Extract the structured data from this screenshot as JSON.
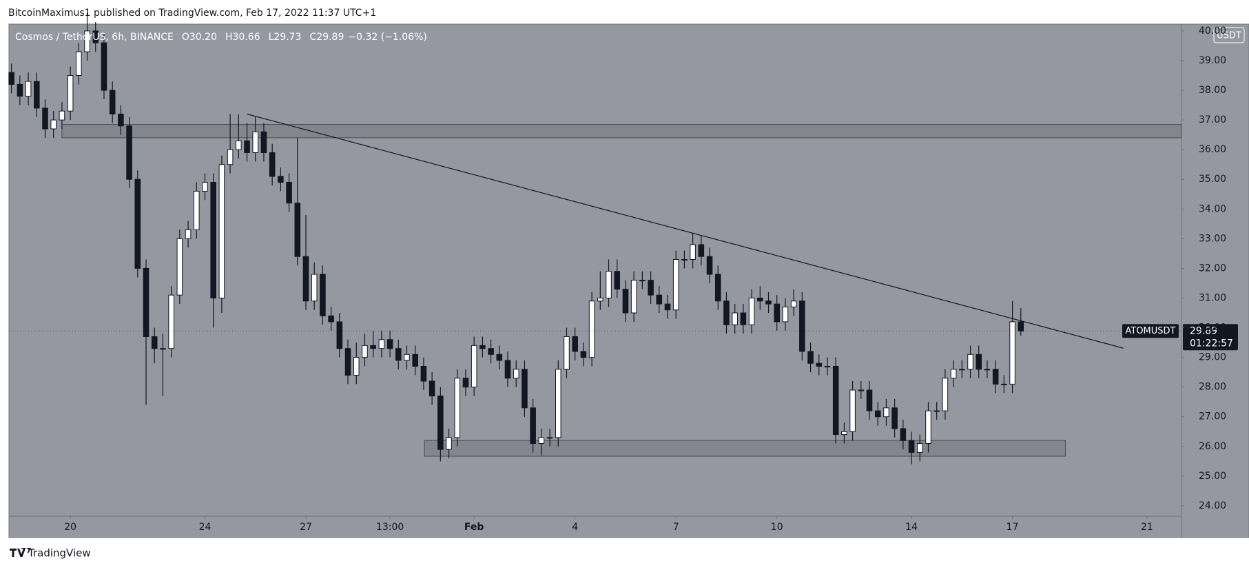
{
  "header": "BitcoinMaximus1 published on TradingView.com, Feb 17, 2022 11:37 UTC+1",
  "footer": "TradingView",
  "chart_data": {
    "type": "candlestick",
    "legend": {
      "name": "Cosmos / TetherUS, 6h, BINANCE",
      "fields": [
        {
          "key": "O",
          "value": "30.20"
        },
        {
          "key": "H",
          "value": "30.66"
        },
        {
          "key": "L",
          "value": "29.73"
        },
        {
          "key": "C",
          "value": "29.89"
        }
      ],
      "change": "−0.32 (−1.06%)"
    },
    "currency": "USDT",
    "last_price": 29.89,
    "countdown": "01:22:57",
    "up_color": "#ffffff",
    "down_color": "#131722",
    "series": [
      {
        "name": "ATOMUSDT",
        "open": [
          38.6,
          38.2,
          37.8,
          38.3,
          37.4,
          36.7,
          37.0,
          37.3,
          38.5,
          39.3,
          40.0,
          39.6,
          38.0,
          37.2,
          36.8,
          35.0,
          32.0,
          29.7,
          29.3,
          29.3,
          31.1,
          33.0,
          33.3,
          34.6,
          34.9,
          31.0,
          35.5,
          36.0,
          36.3,
          35.9,
          36.6,
          35.9,
          35.1,
          34.9,
          34.2,
          32.4,
          30.9,
          31.8,
          30.4,
          30.2,
          29.3,
          28.4,
          29.0,
          29.4,
          29.3,
          29.6,
          29.3,
          28.9,
          29.1,
          28.7,
          28.2,
          27.7,
          25.9,
          26.3,
          28.3,
          28.0,
          29.4,
          29.3,
          29.1,
          28.9,
          28.3,
          28.6,
          27.3,
          26.1,
          26.3,
          26.3,
          28.6,
          29.7,
          29.2,
          29.0,
          30.9,
          31.0,
          31.9,
          31.3,
          30.5,
          31.6,
          31.6,
          31.1,
          30.8,
          30.6,
          32.3,
          32.3,
          32.8,
          32.4,
          31.8,
          30.9,
          30.1,
          30.5,
          30.1,
          31.0,
          30.9,
          30.8,
          30.2,
          30.7,
          30.9,
          29.2,
          28.8,
          28.7,
          28.7,
          26.4,
          26.5,
          27.9,
          27.9,
          27.2,
          27.0,
          27.3,
          26.6,
          26.2,
          25.8,
          26.1,
          27.2,
          27.2,
          28.3,
          28.6,
          28.6,
          29.1,
          28.6,
          28.6,
          28.1,
          28.1,
          30.2
        ],
        "high": [
          38.9,
          38.5,
          38.6,
          38.6,
          37.7,
          37.3,
          37.6,
          38.8,
          39.6,
          40.6,
          40.3,
          39.9,
          38.3,
          37.5,
          37.1,
          35.3,
          32.3,
          30.0,
          29.8,
          31.4,
          33.3,
          33.6,
          34.9,
          35.2,
          35.2,
          35.8,
          37.2,
          37.2,
          36.9,
          37.1,
          36.9,
          36.2,
          35.4,
          35.2,
          36.4,
          33.8,
          32.2,
          32.1,
          30.7,
          30.5,
          29.6,
          29.5,
          29.8,
          29.9,
          29.9,
          29.9,
          29.6,
          29.4,
          29.4,
          29.0,
          28.5,
          28.0,
          26.6,
          28.6,
          28.6,
          29.7,
          29.7,
          29.6,
          29.4,
          29.2,
          28.9,
          28.9,
          27.6,
          26.6,
          26.6,
          28.9,
          30.0,
          30.0,
          29.5,
          31.2,
          31.9,
          32.3,
          32.3,
          31.6,
          31.9,
          31.9,
          31.9,
          31.4,
          31.1,
          32.6,
          32.6,
          33.2,
          33.1,
          32.7,
          32.1,
          31.2,
          30.8,
          30.8,
          31.3,
          31.4,
          31.2,
          31.1,
          31.0,
          31.3,
          31.2,
          29.5,
          29.1,
          29.0,
          29.0,
          26.8,
          28.2,
          28.2,
          28.2,
          27.5,
          27.6,
          27.6,
          26.9,
          26.5,
          26.4,
          27.5,
          27.5,
          28.6,
          28.9,
          28.9,
          29.4,
          29.4,
          28.9,
          28.9,
          28.4,
          30.9,
          30.66
        ],
        "low": [
          37.9,
          37.5,
          37.5,
          37.1,
          36.4,
          36.4,
          36.7,
          37.0,
          38.2,
          39.0,
          39.3,
          37.7,
          36.9,
          36.5,
          34.7,
          31.7,
          27.4,
          28.8,
          27.7,
          29.0,
          30.8,
          32.7,
          33.0,
          34.3,
          30.0,
          30.5,
          35.2,
          35.7,
          35.6,
          35.6,
          35.6,
          34.8,
          34.6,
          33.9,
          32.1,
          30.6,
          30.6,
          30.1,
          29.9,
          29.0,
          28.1,
          28.1,
          28.7,
          29.0,
          29.0,
          29.0,
          28.6,
          28.6,
          28.4,
          27.9,
          27.4,
          25.5,
          25.6,
          26.0,
          27.7,
          27.7,
          29.0,
          28.8,
          28.6,
          28.0,
          28.0,
          27.0,
          25.8,
          25.7,
          26.0,
          26.0,
          28.3,
          28.9,
          28.7,
          28.7,
          30.6,
          30.7,
          31.0,
          30.2,
          30.2,
          31.3,
          30.8,
          30.5,
          30.3,
          30.3,
          32.0,
          32.0,
          32.1,
          31.5,
          30.6,
          29.8,
          29.8,
          29.8,
          29.8,
          30.6,
          30.5,
          29.9,
          29.9,
          30.4,
          28.9,
          28.5,
          28.4,
          28.4,
          26.1,
          26.1,
          26.2,
          27.6,
          26.9,
          26.7,
          26.7,
          26.3,
          25.9,
          25.4,
          25.5,
          25.8,
          26.9,
          26.9,
          28.0,
          28.3,
          28.3,
          28.3,
          28.3,
          27.8,
          27.8,
          27.8,
          29.73
        ],
        "close": [
          38.2,
          37.8,
          38.3,
          37.4,
          36.7,
          37.0,
          37.3,
          38.5,
          39.3,
          40.0,
          39.6,
          38.0,
          37.2,
          36.8,
          35.0,
          32.0,
          29.7,
          29.3,
          29.3,
          31.1,
          33.0,
          33.3,
          34.6,
          34.9,
          31.0,
          35.5,
          36.0,
          36.3,
          35.9,
          36.6,
          35.9,
          35.1,
          34.9,
          34.2,
          32.4,
          30.9,
          31.8,
          30.4,
          30.2,
          29.3,
          28.4,
          29.0,
          29.4,
          29.3,
          29.6,
          29.3,
          28.9,
          29.1,
          28.7,
          28.2,
          27.7,
          25.9,
          26.3,
          28.3,
          28.0,
          29.4,
          29.3,
          29.1,
          28.9,
          28.3,
          28.6,
          27.3,
          26.1,
          26.3,
          26.3,
          28.6,
          29.7,
          29.2,
          29.0,
          30.9,
          31.0,
          31.9,
          31.3,
          30.5,
          31.6,
          31.6,
          31.1,
          30.8,
          30.6,
          32.3,
          32.3,
          32.8,
          32.4,
          31.8,
          30.9,
          30.1,
          30.5,
          30.1,
          31.0,
          30.9,
          30.8,
          30.2,
          30.7,
          30.9,
          29.2,
          28.8,
          28.7,
          28.7,
          26.4,
          26.5,
          27.9,
          27.9,
          27.2,
          27.0,
          27.3,
          26.6,
          26.2,
          25.8,
          26.1,
          27.2,
          27.2,
          28.3,
          28.6,
          28.6,
          29.1,
          28.6,
          28.6,
          28.1,
          28.1,
          30.2,
          29.89
        ]
      }
    ],
    "trendline": {
      "x": [
        28,
        132.2
      ],
      "y": [
        37.2,
        29.31
      ]
    },
    "zones": [
      {
        "x": [
          6,
          139.1
        ],
        "y": [
          36.4,
          36.85
        ]
      },
      {
        "x": [
          49.1,
          125.3
        ],
        "y": [
          25.67,
          26.2
        ]
      }
    ],
    "xlim": [
      -0.3,
      139.1
    ],
    "xticks": [
      {
        "value": 7,
        "label": "20"
      },
      {
        "value": 23,
        "label": "24"
      },
      {
        "value": 35,
        "label": "27"
      },
      {
        "value": 45,
        "label": "13:00"
      },
      {
        "value": 55,
        "label": "Feb"
      },
      {
        "value": 67,
        "label": "4"
      },
      {
        "value": 79,
        "label": "7"
      },
      {
        "value": 91,
        "label": "10"
      },
      {
        "value": 107,
        "label": "14"
      },
      {
        "value": 119,
        "label": "17"
      },
      {
        "value": 135,
        "label": "21"
      }
    ],
    "ylim": [
      23.65,
      40.23
    ],
    "yticks": [
      {
        "value": 24,
        "label": "24.00"
      },
      {
        "value": 25,
        "label": "25.00"
      },
      {
        "value": 26,
        "label": "26.00"
      },
      {
        "value": 27,
        "label": "27.00"
      },
      {
        "value": 28,
        "label": "28.00"
      },
      {
        "value": 29,
        "label": "29.00"
      },
      {
        "value": 30,
        "label": "30.00"
      },
      {
        "value": 31,
        "label": "31.00"
      },
      {
        "value": 32,
        "label": "32.00"
      },
      {
        "value": 33,
        "label": "33.00"
      },
      {
        "value": 34,
        "label": "34.00"
      },
      {
        "value": 35,
        "label": "35.00"
      },
      {
        "value": 36,
        "label": "36.00"
      },
      {
        "value": 37,
        "label": "37.00"
      },
      {
        "value": 38,
        "label": "38.00"
      },
      {
        "value": 39,
        "label": "39.00"
      },
      {
        "value": 40,
        "label": "40.00"
      }
    ],
    "grid": false
  }
}
